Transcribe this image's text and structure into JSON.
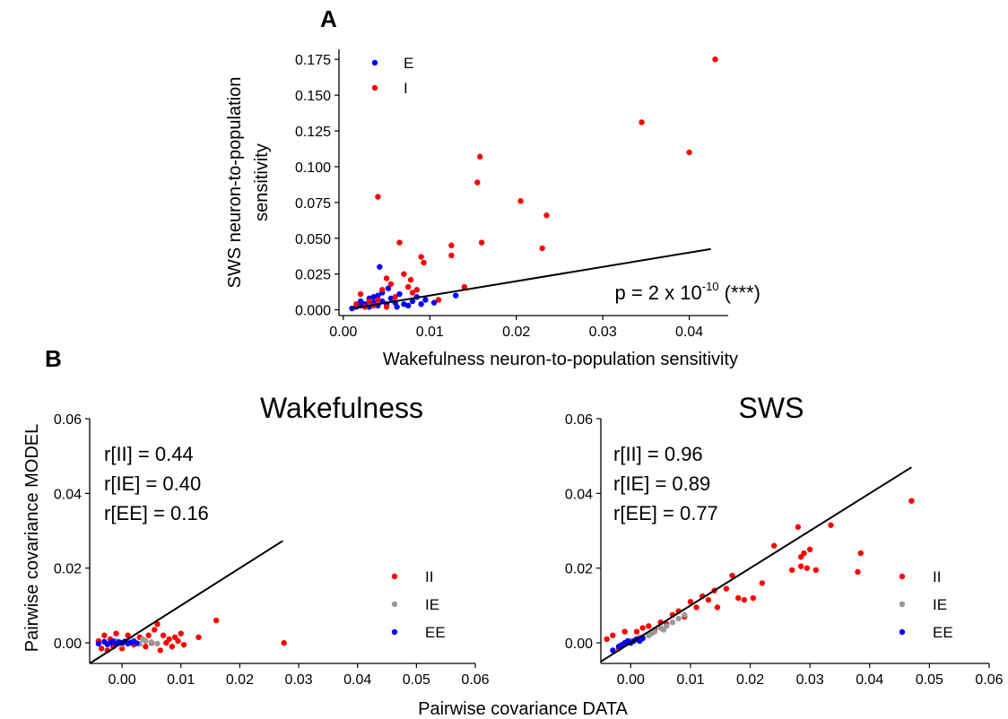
{
  "figure": {
    "panel_a_label": "A",
    "panel_b_label": "B",
    "shared_xlabel": "Pairwise covariance DATA"
  },
  "chart_data": [
    {
      "id": "A",
      "type": "scatter",
      "title": "",
      "xlabel": "Wakefulness neuron-to-population sensitivity",
      "ylabel_lines": [
        "SWS neuron-to-population",
        "sensitivity"
      ],
      "xlim": [
        -0.0005,
        0.0445
      ],
      "ylim": [
        -0.004,
        0.182
      ],
      "xticks": [
        0.0,
        0.01,
        0.02,
        0.03,
        0.04
      ],
      "xtick_labels": [
        "0.00",
        "0.01",
        "0.02",
        "0.03",
        "0.04"
      ],
      "yticks": [
        0.0,
        0.025,
        0.05,
        0.075,
        0.1,
        0.125,
        0.15,
        0.175
      ],
      "ytick_labels": [
        "0.000",
        "0.025",
        "0.050",
        "0.075",
        "0.100",
        "0.125",
        "0.150",
        "0.175"
      ],
      "grid": false,
      "legend_position": "top-left",
      "annotation": {
        "prefix": "p = 2 x 10",
        "exponent": "-10",
        "suffix": " (***)"
      },
      "fit_line": {
        "x": [
          0.001,
          0.0425
        ],
        "y": [
          0.001,
          0.0425
        ]
      },
      "series": [
        {
          "name": "E",
          "color": "#0000ff",
          "points": [
            [
              0.001,
              0.001
            ],
            [
              0.0015,
              0.002
            ],
            [
              0.002,
              0.003
            ],
            [
              0.002,
              0.006
            ],
            [
              0.0025,
              0.004
            ],
            [
              0.003,
              0.002
            ],
            [
              0.003,
              0.008
            ],
            [
              0.0035,
              0.005
            ],
            [
              0.004,
              0.003
            ],
            [
              0.004,
              0.01
            ],
            [
              0.0042,
              0.03
            ],
            [
              0.0045,
              0.006
            ],
            [
              0.005,
              0.004
            ],
            [
              0.0052,
              0.015
            ],
            [
              0.0055,
              0.008
            ],
            [
              0.006,
              0.005
            ],
            [
              0.0062,
              0.002
            ],
            [
              0.0065,
              0.011
            ],
            [
              0.007,
              0.004
            ],
            [
              0.0075,
              0.003
            ],
            [
              0.008,
              0.006
            ],
            [
              0.0085,
              0.009
            ],
            [
              0.009,
              0.004
            ],
            [
              0.0095,
              0.007
            ],
            [
              0.0105,
              0.005
            ],
            [
              0.013,
              0.01
            ],
            [
              0.0035,
              0.009
            ],
            [
              0.0045,
              0.012
            ]
          ]
        },
        {
          "name": "I",
          "color": "#ff0000",
          "points": [
            [
              0.0015,
              0.004
            ],
            [
              0.002,
              0.011
            ],
            [
              0.0025,
              0.002
            ],
            [
              0.003,
              0.006
            ],
            [
              0.0035,
              0.003
            ],
            [
              0.004,
              0.079
            ],
            [
              0.004,
              0.007
            ],
            [
              0.0045,
              0.014
            ],
            [
              0.005,
              0.022
            ],
            [
              0.005,
              0.002
            ],
            [
              0.0055,
              0.018
            ],
            [
              0.006,
              0.009
            ],
            [
              0.0065,
              0.047
            ],
            [
              0.007,
              0.025
            ],
            [
              0.0075,
              0.016
            ],
            [
              0.0078,
              0.021
            ],
            [
              0.008,
              0.012
            ],
            [
              0.0085,
              0.014
            ],
            [
              0.009,
              0.037
            ],
            [
              0.0093,
              0.033
            ],
            [
              0.011,
              0.007
            ],
            [
              0.0125,
              0.045
            ],
            [
              0.0125,
              0.038
            ],
            [
              0.014,
              0.016
            ],
            [
              0.0155,
              0.089
            ],
            [
              0.0158,
              0.107
            ],
            [
              0.016,
              0.047
            ],
            [
              0.0205,
              0.076
            ],
            [
              0.023,
              0.043
            ],
            [
              0.0235,
              0.066
            ],
            [
              0.0345,
              0.131
            ],
            [
              0.04,
              0.11
            ],
            [
              0.043,
              0.175
            ]
          ]
        }
      ]
    },
    {
      "id": "B-left",
      "type": "scatter",
      "title": "Wakefulness",
      "xlabel": "",
      "ylabel": "Pairwise covariance MODEL",
      "xlim": [
        -0.0055,
        0.06
      ],
      "ylim": [
        -0.0055,
        0.06
      ],
      "xticks": [
        0.0,
        0.01,
        0.02,
        0.03,
        0.04,
        0.05,
        0.06
      ],
      "xtick_labels": [
        "0.00",
        "0.01",
        "0.02",
        "0.03",
        "0.04",
        "0.05",
        "0.06"
      ],
      "yticks": [
        0.0,
        0.02,
        0.04,
        0.06
      ],
      "ytick_labels": [
        "0.00",
        "0.02",
        "0.04",
        "0.06"
      ],
      "grid": false,
      "legend_position": "bottom-right",
      "stats": [
        "r[II] = 0.44",
        "r[IE] = 0.40",
        "r[EE] = 0.16"
      ],
      "fit_line": {
        "x": [
          -0.0055,
          0.0273
        ],
        "y": [
          -0.0055,
          0.0273
        ]
      },
      "series": [
        {
          "name": "II",
          "color": "#ff0000",
          "points": [
            [
              -0.004,
              0.0005
            ],
            [
              -0.0035,
              -0.0015
            ],
            [
              -0.003,
              0.002
            ],
            [
              -0.0025,
              -0.002
            ],
            [
              -0.002,
              0.001
            ],
            [
              -0.0015,
              -0.001
            ],
            [
              -0.001,
              0.0025
            ],
            [
              0.0,
              -0.0015
            ],
            [
              0.001,
              0.002
            ],
            [
              0.002,
              -0.0005
            ],
            [
              0.003,
              0.0015
            ],
            [
              0.004,
              -0.001
            ],
            [
              0.0045,
              0.002
            ],
            [
              0.005,
              0.0
            ],
            [
              0.0055,
              0.0035
            ],
            [
              0.006,
              0.005
            ],
            [
              0.0065,
              -0.002
            ],
            [
              0.007,
              0.002
            ],
            [
              0.0075,
              0.0
            ],
            [
              0.008,
              0.001
            ],
            [
              0.0085,
              -0.001
            ],
            [
              0.009,
              0.0015
            ],
            [
              0.0095,
              0.0005
            ],
            [
              0.01,
              0.0025
            ],
            [
              0.0105,
              -0.0005
            ],
            [
              0.013,
              0.0015
            ],
            [
              0.016,
              0.006
            ],
            [
              0.0275,
              0.0
            ]
          ]
        },
        {
          "name": "IE",
          "color": "#999999",
          "points": [
            [
              -0.002,
              0.0
            ],
            [
              -0.001,
              0.0005
            ],
            [
              0.0,
              -0.0005
            ],
            [
              0.001,
              0.0003
            ],
            [
              0.002,
              0.0007
            ],
            [
              0.003,
              -0.0003
            ],
            [
              0.004,
              0.0005
            ],
            [
              0.005,
              0.0002
            ],
            [
              0.006,
              -0.0002
            ],
            [
              0.0035,
              0.001
            ]
          ]
        },
        {
          "name": "EE",
          "color": "#0000ff",
          "points": [
            [
              -0.004,
              -0.0002
            ],
            [
              -0.003,
              0.0003
            ],
            [
              -0.0025,
              -0.0004
            ],
            [
              -0.002,
              0.0
            ],
            [
              -0.0015,
              0.0004
            ],
            [
              -0.001,
              -0.0003
            ],
            [
              -0.0005,
              0.0002
            ],
            [
              0.0,
              0.0
            ],
            [
              0.0005,
              0.0004
            ],
            [
              0.001,
              -0.0002
            ],
            [
              0.0015,
              0.0001
            ],
            [
              0.002,
              0.0003
            ],
            [
              0.0025,
              -0.0001
            ]
          ]
        }
      ]
    },
    {
      "id": "B-right",
      "type": "scatter",
      "title": "SWS",
      "xlabel": "",
      "ylabel": "",
      "xlim": [
        -0.005,
        0.06
      ],
      "ylim": [
        -0.0055,
        0.06
      ],
      "xticks": [
        0.0,
        0.01,
        0.02,
        0.03,
        0.04,
        0.05,
        0.06
      ],
      "xtick_labels": [
        "0.00",
        "0.01",
        "0.02",
        "0.03",
        "0.04",
        "0.05",
        "0.06"
      ],
      "yticks": [
        0.0,
        0.02,
        0.04,
        0.06
      ],
      "ytick_labels": [
        "0.00",
        "0.02",
        "0.04",
        "0.06"
      ],
      "grid": false,
      "legend_position": "bottom-right",
      "stats": [
        "r[II] = 0.96",
        "r[IE] = 0.89",
        "r[EE] = 0.77"
      ],
      "fit_line": {
        "x": [
          -0.005,
          0.047
        ],
        "y": [
          -0.005,
          0.047
        ]
      },
      "series": [
        {
          "name": "II",
          "color": "#ff0000",
          "points": [
            [
              -0.004,
              0.001
            ],
            [
              -0.003,
              0.002
            ],
            [
              -0.002,
              -0.0015
            ],
            [
              -0.001,
              0.003
            ],
            [
              0.0,
              0.0
            ],
            [
              0.001,
              0.003
            ],
            [
              0.002,
              0.004
            ],
            [
              0.003,
              0.0045
            ],
            [
              0.004,
              0.0035
            ],
            [
              0.005,
              0.0055
            ],
            [
              0.006,
              0.005
            ],
            [
              0.007,
              0.0075
            ],
            [
              0.008,
              0.0085
            ],
            [
              0.009,
              0.007
            ],
            [
              0.01,
              0.011
            ],
            [
              0.011,
              0.0095
            ],
            [
              0.012,
              0.0125
            ],
            [
              0.013,
              0.0115
            ],
            [
              0.014,
              0.014
            ],
            [
              0.0145,
              0.0095
            ],
            [
              0.016,
              0.0145
            ],
            [
              0.017,
              0.018
            ],
            [
              0.018,
              0.012
            ],
            [
              0.019,
              0.0115
            ],
            [
              0.0205,
              0.012
            ],
            [
              0.022,
              0.016
            ],
            [
              0.024,
              0.026
            ],
            [
              0.027,
              0.0195
            ],
            [
              0.028,
              0.031
            ],
            [
              0.0285,
              0.023
            ],
            [
              0.029,
              0.024
            ],
            [
              0.0295,
              0.02
            ],
            [
              0.03,
              0.025
            ],
            [
              0.031,
              0.0195
            ],
            [
              0.0335,
              0.0315
            ],
            [
              0.038,
              0.019
            ],
            [
              0.0385,
              0.024
            ],
            [
              0.047,
              0.038
            ],
            [
              0.0285,
              0.0205
            ]
          ]
        },
        {
          "name": "IE",
          "color": "#999999",
          "points": [
            [
              -0.002,
              -0.001
            ],
            [
              -0.001,
              0.0
            ],
            [
              0.0,
              0.0005
            ],
            [
              0.001,
              0.001
            ],
            [
              0.002,
              0.0015
            ],
            [
              0.003,
              0.002
            ],
            [
              0.004,
              0.003
            ],
            [
              0.005,
              0.004
            ],
            [
              0.006,
              0.0045
            ],
            [
              0.007,
              0.0055
            ],
            [
              0.008,
              0.0065
            ],
            [
              0.009,
              0.0075
            ],
            [
              0.0035,
              0.0025
            ],
            [
              0.0015,
              0.0015
            ],
            [
              0.0055,
              0.0035
            ]
          ]
        },
        {
          "name": "EE",
          "color": "#0000ff",
          "points": [
            [
              -0.003,
              -0.002
            ],
            [
              -0.002,
              -0.001
            ],
            [
              -0.0015,
              -0.0005
            ],
            [
              -0.001,
              0.0
            ],
            [
              -0.0005,
              0.0005
            ],
            [
              0.0,
              0.0
            ],
            [
              0.0005,
              0.0005
            ],
            [
              0.001,
              0.001
            ],
            [
              0.0015,
              0.0005
            ],
            [
              0.002,
              0.0012
            ]
          ]
        }
      ]
    }
  ]
}
